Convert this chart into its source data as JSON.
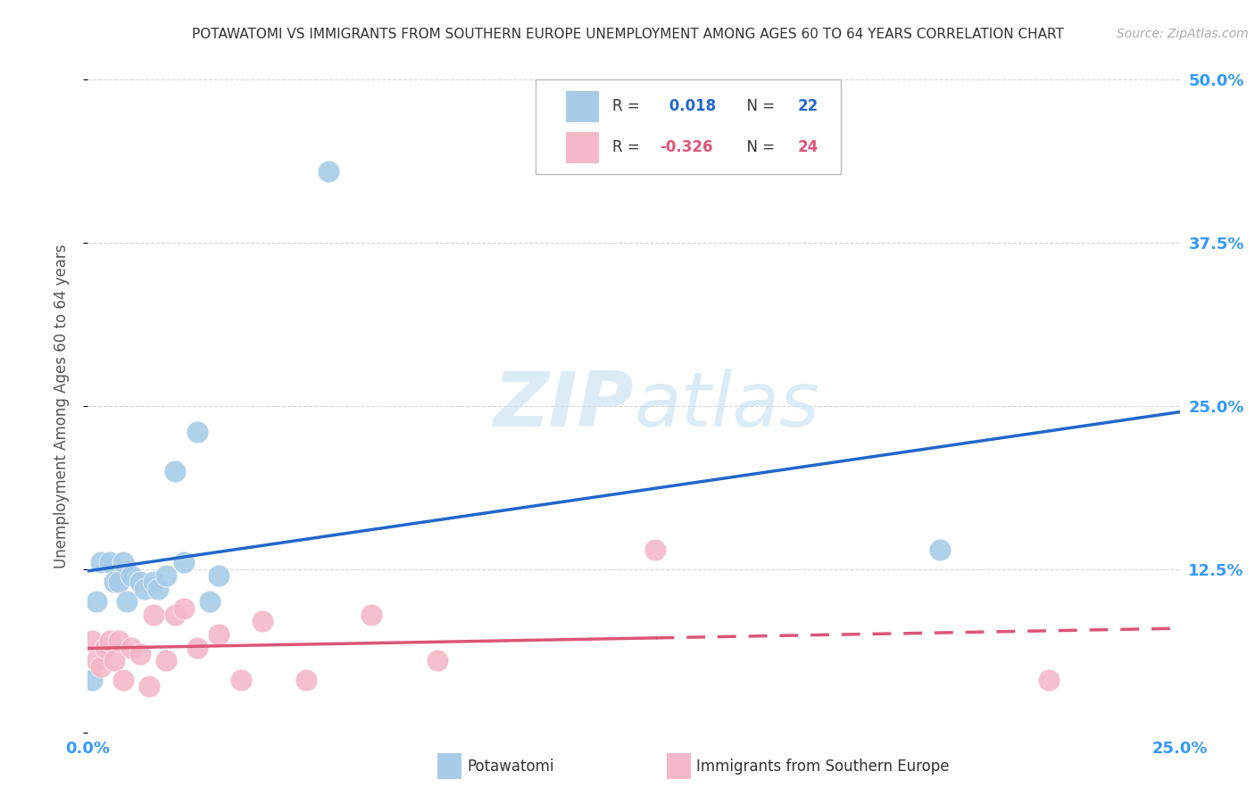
{
  "title": "POTAWATOMI VS IMMIGRANTS FROM SOUTHERN EUROPE UNEMPLOYMENT AMONG AGES 60 TO 64 YEARS CORRELATION CHART",
  "source": "Source: ZipAtlas.com",
  "ylabel": "Unemployment Among Ages 60 to 64 years",
  "xlim": [
    0.0,
    0.25
  ],
  "ylim": [
    0.0,
    0.5
  ],
  "xticks": [
    0.0,
    0.05,
    0.1,
    0.15,
    0.2,
    0.25
  ],
  "yticks": [
    0.0,
    0.125,
    0.25,
    0.375,
    0.5
  ],
  "xticklabels": [
    "0.0%",
    "",
    "",
    "",
    "",
    "25.0%"
  ],
  "yticklabels_right": [
    "",
    "12.5%",
    "25.0%",
    "37.5%",
    "50.0%"
  ],
  "blue_R": "0.018",
  "blue_N": "22",
  "pink_R": "-0.326",
  "pink_N": "24",
  "blue_color": "#a8cce8",
  "pink_color": "#f4b8c8",
  "blue_line_color": "#2266cc",
  "pink_line_color": "#dd5577",
  "watermark_color": "#cce4f5",
  "potawatomi_x": [
    0.001,
    0.002,
    0.003,
    0.004,
    0.005,
    0.006,
    0.007,
    0.008,
    0.009,
    0.01,
    0.012,
    0.013,
    0.015,
    0.016,
    0.018,
    0.02,
    0.022,
    0.025,
    0.028,
    0.03,
    0.055,
    0.195
  ],
  "potawatomi_y": [
    0.04,
    0.1,
    0.13,
    0.065,
    0.13,
    0.115,
    0.115,
    0.13,
    0.1,
    0.12,
    0.115,
    0.11,
    0.115,
    0.11,
    0.12,
    0.2,
    0.13,
    0.23,
    0.1,
    0.12,
    0.43,
    0.14
  ],
  "southern_x": [
    0.001,
    0.002,
    0.003,
    0.004,
    0.005,
    0.006,
    0.007,
    0.008,
    0.01,
    0.012,
    0.014,
    0.015,
    0.018,
    0.02,
    0.022,
    0.025,
    0.03,
    0.035,
    0.04,
    0.05,
    0.065,
    0.08,
    0.13,
    0.22
  ],
  "southern_y": [
    0.07,
    0.055,
    0.05,
    0.065,
    0.07,
    0.055,
    0.07,
    0.04,
    0.065,
    0.06,
    0.035,
    0.09,
    0.055,
    0.09,
    0.095,
    0.065,
    0.075,
    0.04,
    0.085,
    0.04,
    0.09,
    0.055,
    0.14,
    0.04
  ],
  "bg_color": "#ffffff",
  "grid_color": "#cccccc",
  "title_color": "#333333",
  "axis_label_color": "#555555",
  "tick_color_right": "#3399ff",
  "tick_color_bottom": "#3399ff"
}
